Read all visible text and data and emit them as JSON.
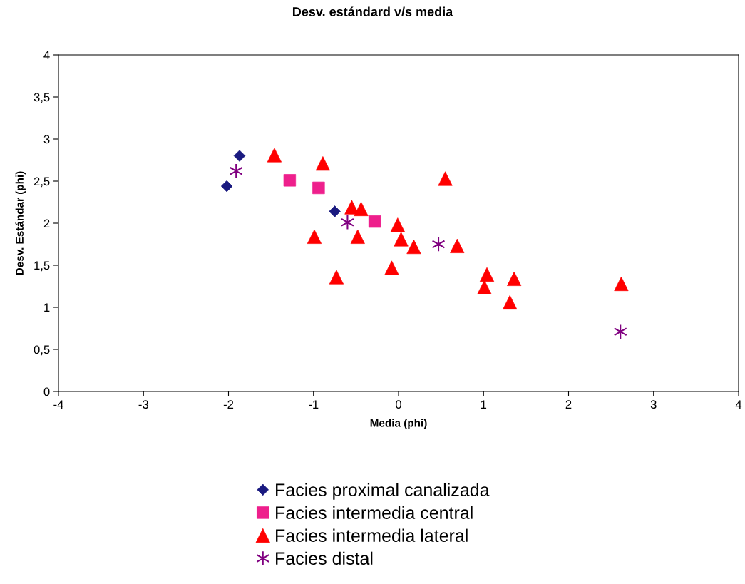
{
  "chart_data": {
    "type": "scatter",
    "title": "Desv. estándard v/s media",
    "xlabel": "Media (phi)",
    "ylabel": "Desv. Estándar (phi)",
    "xlim": [
      -4,
      4
    ],
    "xticks": [
      -4,
      -3,
      -2,
      -1,
      0,
      1,
      2,
      3,
      4
    ],
    "ylim": [
      0,
      4
    ],
    "yticks": [
      0,
      {
        "value": 0.5,
        "label": "0,5"
      },
      1,
      {
        "value": 1.5,
        "label": "1,5"
      },
      2,
      {
        "value": 2.5,
        "label": "2,5"
      },
      3,
      {
        "value": 3.5,
        "label": "3,5"
      },
      4
    ],
    "grid": false,
    "legend": "bottom",
    "series": [
      {
        "name": "Facies proximal canalizada",
        "color": "#1a1a80",
        "marker": "diamond",
        "x": [
          -2.02,
          -1.87,
          -0.75
        ],
        "values": [
          2.44,
          2.8,
          2.14
        ]
      },
      {
        "name": "Facies intermedia central",
        "color": "#ee1f8c",
        "marker": "square",
        "x": [
          -1.28,
          -0.94,
          -0.28
        ],
        "values": [
          2.51,
          2.42,
          2.02
        ]
      },
      {
        "name": "Facies intermedia lateral",
        "color": "#ff0000",
        "marker": "triangle",
        "x": [
          -1.46,
          -0.89,
          -0.55,
          -0.44,
          -0.99,
          -0.48,
          -0.73,
          -0.01,
          0.03,
          0.18,
          -0.08,
          0.55,
          0.69,
          1.04,
          1.01,
          1.36,
          1.31,
          2.62
        ],
        "values": [
          2.81,
          2.71,
          2.19,
          2.17,
          1.84,
          1.84,
          1.36,
          1.98,
          1.81,
          1.72,
          1.47,
          2.53,
          1.73,
          1.39,
          1.24,
          1.34,
          1.06,
          1.28
        ]
      },
      {
        "name": "Facies distal",
        "color": "#800080",
        "marker": "cross",
        "x": [
          -1.91,
          -0.6,
          0.47,
          2.61
        ],
        "values": [
          2.62,
          2.01,
          1.75,
          0.71
        ]
      }
    ]
  }
}
